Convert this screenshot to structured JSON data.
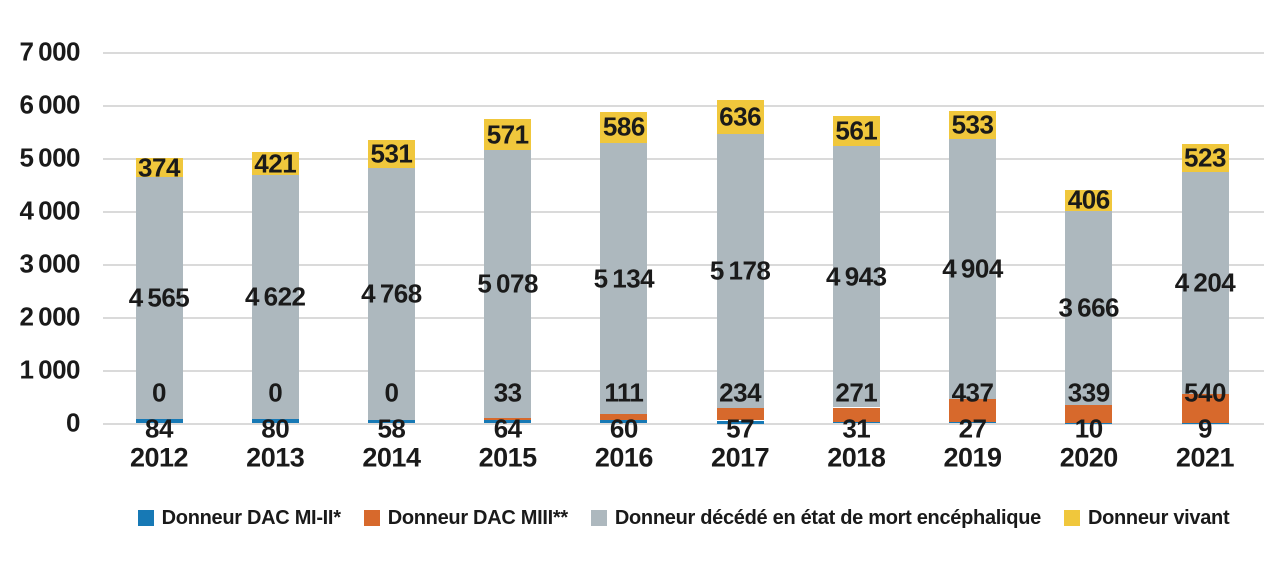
{
  "chart_data": {
    "type": "bar",
    "stacked": true,
    "title": "",
    "categories": [
      "2012",
      "2013",
      "2014",
      "2015",
      "2016",
      "2017",
      "2018",
      "2019",
      "2020",
      "2021"
    ],
    "series": [
      {
        "name": "Donneur DAC MI-II*",
        "color": "#1779B5",
        "values": [
          84,
          80,
          58,
          64,
          60,
          57,
          31,
          27,
          10,
          9
        ],
        "label_placement": "below-axis"
      },
      {
        "name": "Donneur DAC MIII**",
        "color": "#D7692C",
        "values": [
          0,
          0,
          0,
          33,
          111,
          234,
          271,
          437,
          339,
          540
        ],
        "label_placement": "above-segment"
      },
      {
        "name": "Donneur décédé en état de mort encéphalique",
        "color": "#ADB8BE",
        "values": [
          4565,
          4622,
          4768,
          5078,
          5134,
          5178,
          4943,
          4904,
          3666,
          4204
        ],
        "label_placement": "segment-center"
      },
      {
        "name": "Donneur vivant",
        "color": "#F0C73C",
        "values": [
          374,
          421,
          531,
          571,
          586,
          636,
          561,
          533,
          406,
          523
        ],
        "label_placement": "segment-center"
      }
    ],
    "ylim": [
      0,
      7000
    ],
    "ytick_step": 1000,
    "ytick_labels": [
      "0",
      "1 000",
      "2 000",
      "3 000",
      "4 000",
      "5 000",
      "6 000",
      "7 000"
    ],
    "grid": true,
    "legend_position": "bottom",
    "number_format": "thin-space-thousands"
  },
  "colors": {
    "background": "#FFFFFF",
    "gridline": "#DADADA",
    "text": "#1A1A1A"
  }
}
